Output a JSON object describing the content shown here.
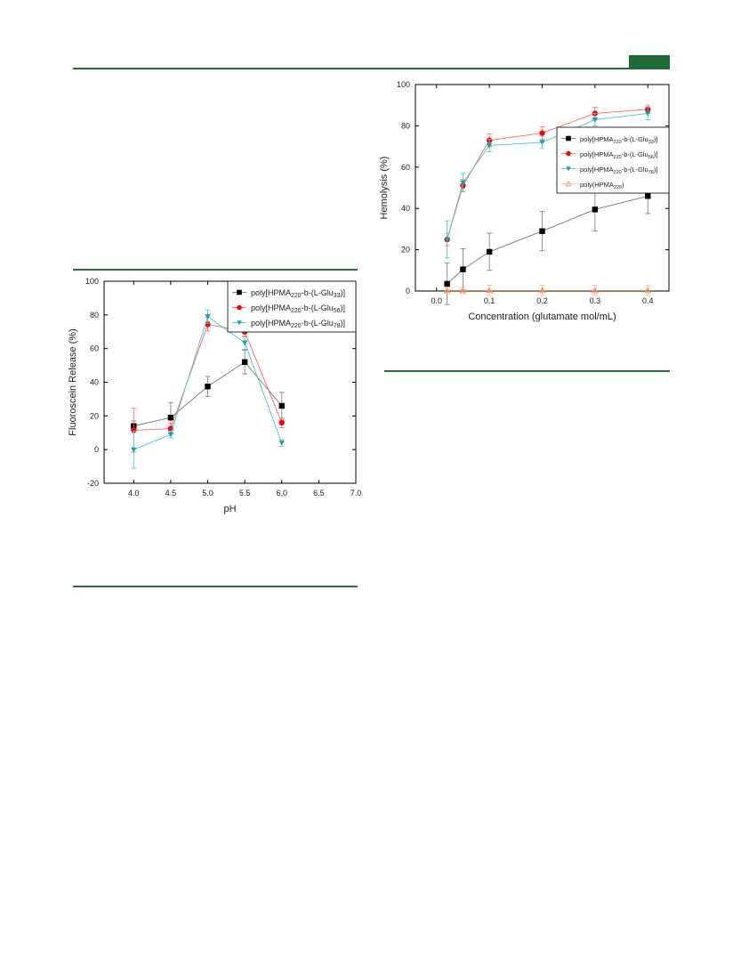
{
  "chart_data": [
    {
      "type": "line",
      "title": "",
      "xlabel": "pH",
      "ylabel": "Fluoroscein Release (%)",
      "xlim": [
        3.6,
        7.0
      ],
      "ylim": [
        -20,
        100
      ],
      "xticks": [
        "4.0",
        "4.5",
        "5.0",
        "5.5",
        "6.0",
        "6.5",
        "7.0"
      ],
      "yticks": [
        "-20",
        "0",
        "20",
        "40",
        "60",
        "80",
        "100"
      ],
      "legend_position": "top-right",
      "series": [
        {
          "name_parts": [
            "poly[HPMA",
            "220",
            "-b-(L-Glu",
            "33",
            ")]"
          ],
          "marker": "square",
          "color": "#000000",
          "line_color": "#777777",
          "x": [
            4.0,
            4.5,
            5.0,
            5.5,
            6.0
          ],
          "y": [
            14,
            19,
            37.5,
            52,
            26
          ],
          "err": [
            3,
            9,
            6,
            7,
            8
          ]
        },
        {
          "name_parts": [
            "poly[HPMA",
            "220",
            "-b-(L-Glu",
            "56",
            ")]"
          ],
          "marker": "circle",
          "color": "#ff0000",
          "line_color": "#ff6666",
          "x": [
            4.0,
            4.5,
            5.0,
            5.5,
            6.0
          ],
          "y": [
            11.5,
            12.5,
            74.5,
            70,
            16
          ],
          "err": [
            13,
            3,
            4,
            3,
            3
          ]
        },
        {
          "name_parts": [
            "poly[HPMA",
            "220",
            "-b-(L-Glu",
            "78",
            ")]"
          ],
          "marker": "triangle-down",
          "color": "#13a5a5",
          "line_color": "#44c8c8",
          "x": [
            4.0,
            4.5,
            5.0,
            5.5,
            6.0
          ],
          "y": [
            0,
            9,
            79,
            63.5,
            4
          ],
          "err": [
            11,
            2,
            4,
            4,
            2
          ]
        }
      ]
    },
    {
      "type": "line",
      "title": "",
      "xlabel": "Concentration (glutamate mol/mL)",
      "ylabel": "Hemolysis (%)",
      "xlim": [
        -0.04,
        0.44
      ],
      "ylim": [
        0,
        100
      ],
      "xticks": [
        "0.0",
        "0.1",
        "0.2",
        "0.3",
        "0.4"
      ],
      "yticks": [
        "0",
        "20",
        "40",
        "60",
        "80",
        "100"
      ],
      "legend_position": "right",
      "series": [
        {
          "name_parts": [
            "poly[HPMA",
            "220",
            "-b-(L-Glu",
            "33",
            ")]"
          ],
          "marker": "square",
          "color": "#000000",
          "line_color": "#777777",
          "x": [
            0.02,
            0.05,
            0.1,
            0.2,
            0.3,
            0.4
          ],
          "y": [
            3.5,
            10.5,
            19,
            29,
            39.5,
            46
          ],
          "err": [
            10,
            10,
            9,
            9.5,
            10.5,
            8.5
          ]
        },
        {
          "name_parts": [
            "poly[HPMA",
            "220",
            "-b-(L-Glu",
            "56",
            ")]"
          ],
          "marker": "circle",
          "color": "#ff0000",
          "line_color": "#ff6666",
          "x": [
            0.02,
            0.05,
            0.1,
            0.2,
            0.3,
            0.4
          ],
          "y": [
            25,
            51,
            73,
            76.5,
            86,
            88
          ],
          "err": [
            3,
            3,
            3,
            3,
            3,
            2
          ]
        },
        {
          "name_parts": [
            "poly[HPMA",
            "220",
            "-b-(L-Glu",
            "78",
            ")]"
          ],
          "marker": "triangle-down",
          "color": "#13a5a5",
          "line_color": "#44c8c8",
          "x": [
            0.02,
            0.05,
            0.1,
            0.2,
            0.3,
            0.4
          ],
          "y": [
            25,
            52.5,
            70.5,
            72,
            83,
            86
          ],
          "err": [
            9,
            4.5,
            3,
            3,
            3,
            3
          ]
        },
        {
          "name_parts": [
            "poly(HPMA",
            "220",
            ")",
            "",
            ""
          ],
          "marker": "triangle-up-open",
          "color": "#ff9966",
          "line_color": "#ffb38a",
          "x": [
            0.02,
            0.05,
            0.1,
            0.2,
            0.3,
            0.4
          ],
          "y": [
            0.3,
            0.3,
            0.3,
            0.3,
            0.3,
            0.3
          ],
          "err": [
            1.5,
            1.5,
            2.5,
            2.5,
            2.5,
            2.5
          ]
        }
      ]
    }
  ]
}
